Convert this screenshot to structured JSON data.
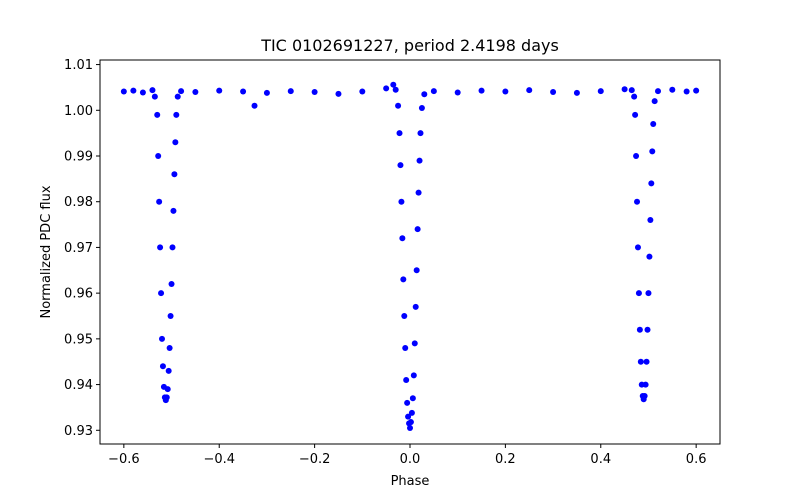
{
  "chart_data": {
    "type": "scatter",
    "title": "TIC 0102691227, period 2.4198 days",
    "xlabel": "Phase",
    "ylabel": "Normalized PDC flux",
    "xlim": [
      -0.65,
      0.65
    ],
    "ylim": [
      0.927,
      1.011
    ],
    "xticks": [
      -0.6,
      -0.4,
      -0.2,
      0.0,
      0.2,
      0.4,
      0.6
    ],
    "xtick_labels": [
      "−0.6",
      "−0.4",
      "−0.2",
      "0.0",
      "0.2",
      "0.4",
      "0.6"
    ],
    "yticks": [
      0.93,
      0.94,
      0.95,
      0.96,
      0.97,
      0.98,
      0.99,
      1.0,
      1.01
    ],
    "ytick_labels": [
      "0.93",
      "0.94",
      "0.95",
      "0.96",
      "0.97",
      "0.98",
      "0.99",
      "1.00",
      "1.01"
    ],
    "grid": false,
    "marker_color": "#0000ff",
    "series": [
      {
        "points": [
          [
            -0.6,
            1.0041
          ],
          [
            -0.58,
            1.0043
          ],
          [
            -0.56,
            1.0039
          ],
          [
            -0.54,
            1.0044
          ],
          [
            -0.535,
            1.003
          ],
          [
            -0.53,
            0.999
          ],
          [
            -0.528,
            0.99
          ],
          [
            -0.526,
            0.98
          ],
          [
            -0.524,
            0.97
          ],
          [
            -0.522,
            0.96
          ],
          [
            -0.52,
            0.95
          ],
          [
            -0.518,
            0.944
          ],
          [
            -0.516,
            0.9395
          ],
          [
            -0.514,
            0.9372
          ],
          [
            -0.512,
            0.9366
          ],
          [
            -0.51,
            0.9372
          ],
          [
            -0.508,
            0.939
          ],
          [
            -0.506,
            0.943
          ],
          [
            -0.504,
            0.948
          ],
          [
            -0.502,
            0.955
          ],
          [
            -0.5,
            0.962
          ],
          [
            -0.498,
            0.97
          ],
          [
            -0.496,
            0.978
          ],
          [
            -0.494,
            0.986
          ],
          [
            -0.492,
            0.993
          ],
          [
            -0.49,
            0.999
          ],
          [
            -0.487,
            1.003
          ],
          [
            -0.48,
            1.0042
          ],
          [
            -0.45,
            1.004
          ],
          [
            -0.4,
            1.0043
          ],
          [
            -0.35,
            1.0041
          ],
          [
            -0.326,
            1.001
          ],
          [
            -0.3,
            1.0038
          ],
          [
            -0.25,
            1.0042
          ],
          [
            -0.2,
            1.004
          ],
          [
            -0.15,
            1.0036
          ],
          [
            -0.1,
            1.0041
          ],
          [
            -0.05,
            1.0048
          ],
          [
            -0.035,
            1.0056
          ],
          [
            -0.03,
            1.0045
          ],
          [
            -0.025,
            1.001
          ],
          [
            -0.022,
            0.995
          ],
          [
            -0.02,
            0.988
          ],
          [
            -0.018,
            0.98
          ],
          [
            -0.016,
            0.972
          ],
          [
            -0.014,
            0.963
          ],
          [
            -0.012,
            0.955
          ],
          [
            -0.01,
            0.948
          ],
          [
            -0.008,
            0.941
          ],
          [
            -0.006,
            0.936
          ],
          [
            -0.004,
            0.933
          ],
          [
            -0.002,
            0.9315
          ],
          [
            0.0,
            0.9305
          ],
          [
            0.002,
            0.9318
          ],
          [
            0.004,
            0.9338
          ],
          [
            0.006,
            0.937
          ],
          [
            0.008,
            0.942
          ],
          [
            0.01,
            0.949
          ],
          [
            0.012,
            0.957
          ],
          [
            0.014,
            0.965
          ],
          [
            0.016,
            0.974
          ],
          [
            0.018,
            0.982
          ],
          [
            0.02,
            0.989
          ],
          [
            0.022,
            0.995
          ],
          [
            0.025,
            1.0005
          ],
          [
            0.03,
            1.0035
          ],
          [
            0.05,
            1.0042
          ],
          [
            0.1,
            1.0039
          ],
          [
            0.15,
            1.0043
          ],
          [
            0.2,
            1.0041
          ],
          [
            0.25,
            1.0044
          ],
          [
            0.3,
            1.004
          ],
          [
            0.35,
            1.0038
          ],
          [
            0.4,
            1.0042
          ],
          [
            0.45,
            1.0046
          ],
          [
            0.465,
            1.0044
          ],
          [
            0.47,
            1.003
          ],
          [
            0.472,
            0.999
          ],
          [
            0.474,
            0.99
          ],
          [
            0.476,
            0.98
          ],
          [
            0.478,
            0.97
          ],
          [
            0.48,
            0.96
          ],
          [
            0.482,
            0.952
          ],
          [
            0.484,
            0.945
          ],
          [
            0.486,
            0.94
          ],
          [
            0.488,
            0.9375
          ],
          [
            0.49,
            0.9368
          ],
          [
            0.492,
            0.9375
          ],
          [
            0.494,
            0.94
          ],
          [
            0.496,
            0.945
          ],
          [
            0.498,
            0.952
          ],
          [
            0.5,
            0.96
          ],
          [
            0.502,
            0.968
          ],
          [
            0.504,
            0.976
          ],
          [
            0.506,
            0.984
          ],
          [
            0.508,
            0.991
          ],
          [
            0.51,
            0.997
          ],
          [
            0.513,
            1.002
          ],
          [
            0.52,
            1.0042
          ],
          [
            0.55,
            1.0045
          ],
          [
            0.58,
            1.0041
          ],
          [
            0.6,
            1.0043
          ]
        ]
      }
    ]
  }
}
